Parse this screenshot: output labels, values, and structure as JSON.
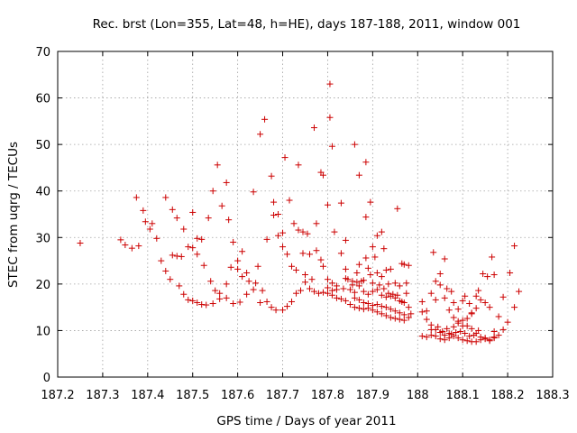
{
  "chart_data": {
    "type": "scatter",
    "title": "Rec. brst (Lon=355, Lat=48, h=HE), days 187-188, 2011, window 001",
    "xlabel": "GPS time / Days of year 2011",
    "ylabel": "STEC from uqrg / TECUs",
    "xlim": [
      187.2,
      188.3
    ],
    "ylim": [
      0,
      70
    ],
    "x_ticks": [
      "187.2",
      "187.3",
      "187.4",
      "187.5",
      "187.6",
      "187.7",
      "187.8",
      "187.9",
      "188",
      "188.1",
      "188.2",
      "188.3"
    ],
    "y_ticks": [
      "0",
      "10",
      "20",
      "30",
      "40",
      "50",
      "60",
      "70"
    ],
    "grid": true,
    "marker": "plus",
    "series": [
      {
        "color": "#cc0000",
        "points": [
          [
            187.25,
            28.8
          ],
          [
            187.34,
            29.5
          ],
          [
            187.35,
            28.4
          ],
          [
            187.365,
            27.7
          ],
          [
            187.38,
            28.2
          ],
          [
            187.375,
            38.6
          ],
          [
            187.39,
            35.8
          ],
          [
            187.395,
            33.4
          ],
          [
            187.405,
            31.8
          ],
          [
            187.41,
            33.0
          ],
          [
            187.42,
            29.8
          ],
          [
            187.43,
            25.0
          ],
          [
            187.44,
            22.8
          ],
          [
            187.45,
            21.0
          ],
          [
            187.455,
            26.2
          ],
          [
            187.465,
            26.0
          ],
          [
            187.475,
            25.9
          ],
          [
            187.48,
            17.8
          ],
          [
            187.47,
            19.6
          ],
          [
            187.49,
            16.6
          ],
          [
            187.5,
            16.4
          ],
          [
            187.51,
            16.0
          ],
          [
            187.52,
            15.6
          ],
          [
            187.53,
            15.5
          ],
          [
            187.545,
            15.8
          ],
          [
            187.56,
            16.8
          ],
          [
            187.575,
            17.0
          ],
          [
            187.59,
            15.8
          ],
          [
            187.605,
            16.1
          ],
          [
            187.62,
            17.8
          ],
          [
            187.635,
            18.8
          ],
          [
            187.65,
            16.0
          ],
          [
            187.44,
            38.6
          ],
          [
            187.455,
            36.0
          ],
          [
            187.465,
            34.2
          ],
          [
            187.48,
            31.8
          ],
          [
            187.49,
            28.0
          ],
          [
            187.5,
            35.4
          ],
          [
            187.51,
            29.8
          ],
          [
            187.52,
            29.6
          ],
          [
            187.535,
            34.2
          ],
          [
            187.545,
            40.0
          ],
          [
            187.555,
            45.6
          ],
          [
            187.565,
            36.8
          ],
          [
            187.575,
            41.8
          ],
          [
            187.58,
            33.8
          ],
          [
            187.59,
            29.0
          ],
          [
            187.6,
            25.0
          ],
          [
            187.61,
            27.0
          ],
          [
            187.62,
            22.4
          ],
          [
            187.635,
            39.8
          ],
          [
            187.645,
            23.8
          ],
          [
            187.65,
            52.2
          ],
          [
            187.66,
            55.4
          ],
          [
            187.665,
            29.6
          ],
          [
            187.675,
            43.2
          ],
          [
            187.68,
            37.6
          ],
          [
            187.69,
            35.0
          ],
          [
            187.7,
            31.0
          ],
          [
            187.705,
            47.2
          ],
          [
            187.715,
            38.0
          ],
          [
            187.725,
            33.0
          ],
          [
            187.735,
            45.6
          ],
          [
            187.745,
            31.2
          ],
          [
            187.755,
            30.8
          ],
          [
            187.77,
            53.6
          ],
          [
            187.775,
            33.0
          ],
          [
            187.785,
            44.0
          ],
          [
            187.79,
            43.4
          ],
          [
            187.8,
            37.0
          ],
          [
            187.805,
            63.0
          ],
          [
            187.805,
            55.8
          ],
          [
            187.81,
            49.6
          ],
          [
            187.815,
            31.2
          ],
          [
            187.83,
            37.4
          ],
          [
            187.84,
            29.4
          ],
          [
            187.86,
            50.0
          ],
          [
            187.87,
            43.4
          ],
          [
            187.885,
            46.2
          ],
          [
            187.885,
            34.4
          ],
          [
            187.895,
            37.6
          ],
          [
            187.9,
            28.0
          ],
          [
            187.91,
            30.4
          ],
          [
            187.92,
            31.2
          ],
          [
            187.925,
            27.6
          ],
          [
            187.955,
            36.2
          ],
          [
            187.965,
            24.4
          ],
          [
            187.5,
            27.8
          ],
          [
            187.51,
            26.4
          ],
          [
            187.525,
            24.0
          ],
          [
            187.54,
            20.6
          ],
          [
            187.55,
            18.6
          ],
          [
            187.56,
            18.0
          ],
          [
            187.575,
            20.0
          ],
          [
            187.585,
            23.6
          ],
          [
            187.6,
            23.2
          ],
          [
            187.61,
            21.6
          ],
          [
            187.625,
            20.6
          ],
          [
            187.64,
            20.2
          ],
          [
            187.655,
            18.6
          ],
          [
            187.665,
            16.2
          ],
          [
            187.675,
            15.0
          ],
          [
            187.685,
            14.4
          ],
          [
            187.7,
            14.4
          ],
          [
            187.71,
            15.2
          ],
          [
            187.72,
            16.2
          ],
          [
            187.73,
            18.0
          ],
          [
            187.74,
            18.6
          ],
          [
            187.75,
            20.4
          ],
          [
            187.76,
            19.0
          ],
          [
            187.77,
            18.4
          ],
          [
            187.78,
            18.0
          ],
          [
            187.79,
            18.2
          ],
          [
            187.8,
            18.0
          ],
          [
            187.81,
            17.6
          ],
          [
            187.82,
            17.0
          ],
          [
            187.83,
            16.8
          ],
          [
            187.84,
            16.4
          ],
          [
            187.85,
            15.6
          ],
          [
            187.86,
            15.0
          ],
          [
            187.87,
            14.8
          ],
          [
            187.88,
            14.6
          ],
          [
            187.89,
            14.8
          ],
          [
            187.9,
            14.4
          ],
          [
            187.91,
            14.0
          ],
          [
            187.92,
            13.6
          ],
          [
            187.93,
            13.2
          ],
          [
            187.94,
            12.8
          ],
          [
            187.95,
            12.6
          ],
          [
            187.96,
            12.4
          ],
          [
            187.97,
            12.2
          ],
          [
            187.68,
            34.8
          ],
          [
            187.69,
            30.4
          ],
          [
            187.7,
            28.0
          ],
          [
            187.71,
            26.4
          ],
          [
            187.72,
            23.8
          ],
          [
            187.73,
            23.0
          ],
          [
            187.735,
            31.6
          ],
          [
            187.745,
            26.6
          ],
          [
            187.75,
            22.0
          ],
          [
            187.76,
            26.4
          ],
          [
            187.765,
            21.0
          ],
          [
            187.775,
            27.2
          ],
          [
            187.785,
            25.2
          ],
          [
            187.79,
            23.8
          ],
          [
            187.8,
            21.0
          ],
          [
            187.81,
            20.2
          ],
          [
            187.82,
            19.6
          ],
          [
            187.83,
            26.6
          ],
          [
            187.84,
            23.2
          ],
          [
            187.845,
            21.0
          ],
          [
            187.855,
            19.8
          ],
          [
            187.865,
            22.4
          ],
          [
            187.87,
            24.2
          ],
          [
            187.875,
            20.6
          ],
          [
            187.885,
            25.6
          ],
          [
            187.89,
            23.4
          ],
          [
            187.895,
            22.0
          ],
          [
            187.905,
            25.8
          ],
          [
            187.91,
            22.4
          ],
          [
            187.92,
            21.6
          ],
          [
            187.93,
            23.0
          ],
          [
            187.935,
            20.0
          ],
          [
            187.94,
            23.2
          ],
          [
            187.95,
            20.2
          ],
          [
            187.96,
            19.6
          ],
          [
            187.97,
            24.2
          ],
          [
            187.975,
            20.2
          ],
          [
            187.98,
            24.0
          ],
          [
            187.8,
            19.2
          ],
          [
            187.81,
            18.6
          ],
          [
            187.82,
            18.8
          ],
          [
            187.835,
            19.0
          ],
          [
            187.85,
            18.8
          ],
          [
            187.86,
            18.2
          ],
          [
            187.87,
            19.6
          ],
          [
            187.88,
            18.4
          ],
          [
            187.89,
            17.8
          ],
          [
            187.9,
            18.4
          ],
          [
            187.91,
            18.8
          ],
          [
            187.92,
            17.6
          ],
          [
            187.93,
            17.2
          ],
          [
            187.94,
            17.4
          ],
          [
            187.95,
            17.0
          ],
          [
            187.96,
            16.4
          ],
          [
            187.97,
            16.0
          ],
          [
            187.98,
            15.0
          ],
          [
            187.86,
            17.0
          ],
          [
            187.87,
            16.6
          ],
          [
            187.88,
            16.0
          ],
          [
            187.89,
            15.8
          ],
          [
            187.9,
            15.4
          ],
          [
            187.91,
            15.6
          ],
          [
            187.92,
            15.2
          ],
          [
            187.93,
            15.0
          ],
          [
            187.94,
            14.6
          ],
          [
            187.95,
            14.2
          ],
          [
            187.96,
            13.8
          ],
          [
            187.97,
            13.4
          ],
          [
            187.98,
            12.8
          ],
          [
            187.985,
            13.6
          ],
          [
            187.84,
            21.2
          ],
          [
            187.855,
            20.6
          ],
          [
            187.865,
            20.4
          ],
          [
            187.88,
            20.8
          ],
          [
            187.9,
            20.2
          ],
          [
            187.915,
            19.8
          ],
          [
            187.925,
            19.0
          ],
          [
            187.935,
            18.0
          ],
          [
            187.945,
            17.8
          ],
          [
            187.955,
            17.6
          ],
          [
            187.965,
            16.2
          ],
          [
            187.975,
            18.0
          ],
          [
            188.01,
            16.2
          ],
          [
            188.02,
            14.2
          ],
          [
            188.03,
            18.0
          ],
          [
            188.035,
            26.8
          ],
          [
            188.04,
            16.6
          ],
          [
            188.05,
            22.2
          ],
          [
            188.06,
            25.4
          ],
          [
            188.065,
            19.0
          ],
          [
            188.075,
            18.4
          ],
          [
            188.08,
            16.0
          ],
          [
            188.09,
            14.6
          ],
          [
            188.1,
            16.4
          ],
          [
            188.105,
            17.4
          ],
          [
            188.115,
            15.8
          ],
          [
            188.12,
            13.8
          ],
          [
            188.13,
            17.4
          ],
          [
            188.135,
            18.6
          ],
          [
            188.145,
            22.2
          ],
          [
            188.155,
            21.6
          ],
          [
            188.165,
            25.8
          ],
          [
            188.17,
            22.0
          ],
          [
            188.18,
            13.0
          ],
          [
            188.19,
            17.2
          ],
          [
            188.205,
            22.4
          ],
          [
            188.215,
            28.2
          ],
          [
            188.225,
            18.4
          ],
          [
            188.215,
            15.0
          ],
          [
            188.01,
            14.0
          ],
          [
            188.02,
            12.4
          ],
          [
            188.03,
            11.2
          ],
          [
            188.04,
            10.2
          ],
          [
            188.05,
            9.6
          ],
          [
            188.06,
            9.0
          ],
          [
            188.07,
            9.4
          ],
          [
            188.08,
            10.8
          ],
          [
            188.09,
            12.0
          ],
          [
            188.1,
            12.2
          ],
          [
            188.11,
            11.0
          ],
          [
            188.12,
            10.4
          ],
          [
            188.13,
            9.4
          ],
          [
            188.14,
            8.6
          ],
          [
            188.15,
            8.2
          ],
          [
            188.16,
            8.0
          ],
          [
            188.17,
            8.4
          ],
          [
            188.18,
            9.0
          ],
          [
            188.19,
            10.2
          ],
          [
            188.2,
            11.8
          ],
          [
            188.01,
            8.8
          ],
          [
            188.02,
            8.6
          ],
          [
            188.03,
            9.0
          ],
          [
            188.04,
            8.8
          ],
          [
            188.05,
            8.2
          ],
          [
            188.06,
            8.0
          ],
          [
            188.07,
            8.4
          ],
          [
            188.08,
            8.8
          ],
          [
            188.09,
            8.4
          ],
          [
            188.1,
            8.0
          ],
          [
            188.11,
            7.8
          ],
          [
            188.12,
            7.6
          ],
          [
            188.13,
            7.6
          ],
          [
            188.14,
            8.0
          ],
          [
            188.15,
            8.4
          ],
          [
            188.16,
            7.8
          ],
          [
            188.17,
            8.6
          ],
          [
            188.04,
            20.6
          ],
          [
            188.05,
            19.8
          ],
          [
            188.06,
            17.0
          ],
          [
            188.07,
            14.4
          ],
          [
            188.08,
            12.8
          ],
          [
            188.09,
            11.6
          ],
          [
            188.1,
            11.0
          ],
          [
            188.11,
            12.6
          ],
          [
            188.12,
            13.6
          ],
          [
            188.13,
            14.8
          ],
          [
            188.14,
            16.6
          ],
          [
            188.15,
            16.0
          ],
          [
            188.16,
            15.0
          ],
          [
            188.17,
            9.8
          ],
          [
            188.03,
            10.2
          ],
          [
            188.045,
            10.8
          ],
          [
            188.055,
            9.8
          ],
          [
            188.065,
            10.4
          ],
          [
            188.075,
            9.2
          ],
          [
            188.085,
            9.6
          ],
          [
            188.095,
            9.8
          ],
          [
            188.105,
            9.4
          ],
          [
            188.115,
            8.8
          ],
          [
            188.125,
            9.0
          ],
          [
            188.135,
            10.0
          ]
        ]
      }
    ]
  }
}
